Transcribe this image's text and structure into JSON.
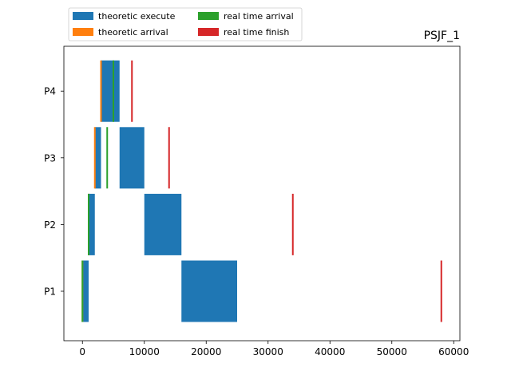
{
  "chart_data": {
    "type": "gantt",
    "title": "PSJF_1",
    "xlim": [
      -3000,
      61000
    ],
    "x_ticks": [
      0,
      10000,
      20000,
      30000,
      40000,
      50000,
      60000
    ],
    "y_categories": [
      "P1",
      "P2",
      "P3",
      "P4"
    ],
    "legend": {
      "placement": "top-left-outside",
      "entries": [
        {
          "label": "theoretic execute",
          "color": "#1f77b4"
        },
        {
          "label": "theoretic arrival",
          "color": "#ff7f0e"
        },
        {
          "label": "real time arrival",
          "color": "#2ca02c"
        },
        {
          "label": "real time finish",
          "color": "#d62728"
        }
      ]
    },
    "series": [
      {
        "name": "theoretic execute",
        "color": "#1f77b4",
        "segments": [
          {
            "process": "P1",
            "start": 0,
            "end": 1000
          },
          {
            "process": "P1",
            "start": 16000,
            "end": 25000
          },
          {
            "process": "P2",
            "start": 1000,
            "end": 2000
          },
          {
            "process": "P2",
            "start": 10000,
            "end": 16000
          },
          {
            "process": "P3",
            "start": 2000,
            "end": 3000
          },
          {
            "process": "P3",
            "start": 6000,
            "end": 10000
          },
          {
            "process": "P4",
            "start": 3000,
            "end": 6000
          }
        ]
      },
      {
        "name": "theoretic arrival",
        "color": "#ff7f0e",
        "events": [
          {
            "process": "P1",
            "x": 0
          },
          {
            "process": "P2",
            "x": 1000
          },
          {
            "process": "P3",
            "x": 2000
          },
          {
            "process": "P4",
            "x": 3000
          }
        ]
      },
      {
        "name": "real time arrival",
        "color": "#2ca02c",
        "events": [
          {
            "process": "P1",
            "x": 0
          },
          {
            "process": "P2",
            "x": 1000
          },
          {
            "process": "P3",
            "x": 4000
          },
          {
            "process": "P4",
            "x": 5000
          }
        ]
      },
      {
        "name": "real time finish",
        "color": "#d62728",
        "events": [
          {
            "process": "P1",
            "x": 58000
          },
          {
            "process": "P2",
            "x": 34000
          },
          {
            "process": "P3",
            "x": 14000
          },
          {
            "process": "P4",
            "x": 8000
          }
        ]
      }
    ]
  }
}
